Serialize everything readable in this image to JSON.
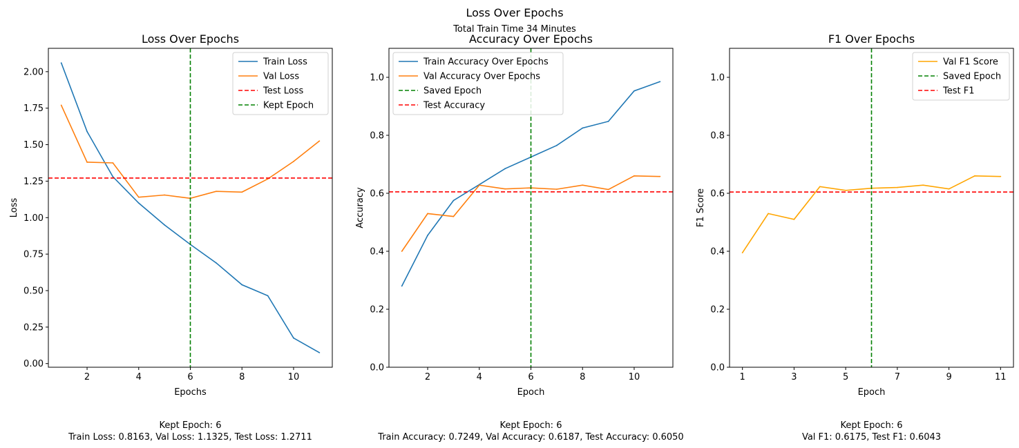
{
  "figure": {
    "suptitle": "Loss Over Epochs",
    "subtitle": "Total Train Time 34 Minutes"
  },
  "chart_data": [
    {
      "type": "line",
      "title": "Loss Over Epochs",
      "xlabel": "Epochs",
      "ylabel": "Loss",
      "xlim": [
        0.5,
        11.5
      ],
      "ylim": [
        -0.025,
        2.16
      ],
      "xticks": [
        2,
        4,
        6,
        8,
        10
      ],
      "yticks": [
        0.0,
        0.25,
        0.5,
        0.75,
        1.0,
        1.25,
        1.5,
        1.75,
        2.0
      ],
      "ytick_labels": [
        "0.00",
        "0.25",
        "0.50",
        "0.75",
        "1.00",
        "1.25",
        "1.50",
        "1.75",
        "2.00"
      ],
      "legend": "upper right",
      "grid": false,
      "x": [
        1,
        2,
        3,
        4,
        5,
        6,
        7,
        8,
        9,
        10,
        11
      ],
      "series": [
        {
          "name": "Train Loss",
          "color": "#1f77b4",
          "values": [
            2.06,
            1.59,
            1.28,
            1.1,
            0.95,
            0.8163,
            0.69,
            0.54,
            0.465,
            0.175,
            0.075
          ]
        },
        {
          "name": "Val Loss",
          "color": "#ff7f0e",
          "values": [
            1.77,
            1.38,
            1.375,
            1.14,
            1.155,
            1.1325,
            1.18,
            1.175,
            1.265,
            1.385,
            1.525
          ]
        }
      ],
      "hlines": [
        {
          "name": "Test Loss",
          "color": "#ff0000",
          "y": 1.2711
        }
      ],
      "vlines": [
        {
          "name": "Kept Epoch",
          "color": "#008000",
          "x": 6
        }
      ],
      "legend_order": [
        "Train Loss",
        "Val Loss",
        "Test Loss",
        "Kept Epoch"
      ],
      "caption": [
        "Kept Epoch: 6",
        "Train Loss: 0.8163, Val Loss: 1.1325, Test Loss: 1.2711"
      ]
    },
    {
      "type": "line",
      "title": "Accuracy Over Epochs",
      "xlabel": "Epoch",
      "ylabel": "Accuracy",
      "xlim": [
        0.5,
        11.5
      ],
      "ylim": [
        0.0,
        1.1
      ],
      "xticks": [
        2,
        4,
        6,
        8,
        10
      ],
      "yticks": [
        0.0,
        0.2,
        0.4,
        0.6,
        0.8,
        1.0
      ],
      "ytick_labels": [
        "0.0",
        "0.2",
        "0.4",
        "0.6",
        "0.8",
        "1.0"
      ],
      "legend": "upper left",
      "grid": false,
      "x": [
        1,
        2,
        3,
        4,
        5,
        6,
        7,
        8,
        9,
        10,
        11
      ],
      "series": [
        {
          "name": "Train Accuracy Over Epochs",
          "color": "#1f77b4",
          "values": [
            0.28,
            0.455,
            0.575,
            0.63,
            0.685,
            0.7249,
            0.765,
            0.825,
            0.848,
            0.953,
            0.985
          ]
        },
        {
          "name": "Val Accuracy Over Epochs",
          "color": "#ff7f0e",
          "values": [
            0.4,
            0.53,
            0.52,
            0.628,
            0.615,
            0.6187,
            0.614,
            0.628,
            0.613,
            0.66,
            0.658
          ]
        }
      ],
      "hlines": [
        {
          "name": "Test Accuracy",
          "color": "#ff0000",
          "y": 0.605
        }
      ],
      "vlines": [
        {
          "name": "Saved Epoch",
          "color": "#008000",
          "x": 6
        }
      ],
      "legend_order": [
        "Train Accuracy Over Epochs",
        "Val Accuracy Over Epochs",
        "Saved Epoch",
        "Test Accuracy"
      ],
      "caption": [
        "Kept Epoch: 6",
        "Train Accuracy: 0.7249, Val Accuracy: 0.6187, Test Accuracy: 0.6050"
      ]
    },
    {
      "type": "line",
      "title": "F1 Over Epochs",
      "xlabel": "Epoch",
      "ylabel": "F1 Score",
      "xlim": [
        0.5,
        11.5
      ],
      "ylim": [
        0.0,
        1.1
      ],
      "xticks": [
        1,
        3,
        5,
        7,
        9,
        11
      ],
      "yticks": [
        0.0,
        0.2,
        0.4,
        0.6,
        0.8,
        1.0
      ],
      "ytick_labels": [
        "0.0",
        "0.2",
        "0.4",
        "0.6",
        "0.8",
        "1.0"
      ],
      "legend": "upper right",
      "grid": false,
      "x": [
        1,
        2,
        3,
        4,
        5,
        6,
        7,
        8,
        9,
        10,
        11
      ],
      "series": [
        {
          "name": "Val F1 Score",
          "color": "#ffa500",
          "values": [
            0.395,
            0.53,
            0.51,
            0.623,
            0.61,
            0.6175,
            0.62,
            0.628,
            0.615,
            0.66,
            0.658
          ]
        }
      ],
      "hlines": [
        {
          "name": "Test F1",
          "color": "#ff0000",
          "y": 0.6043
        }
      ],
      "vlines": [
        {
          "name": "Saved Epoch",
          "color": "#008000",
          "x": 6
        }
      ],
      "legend_order": [
        "Val F1 Score",
        "Saved Epoch",
        "Test F1"
      ],
      "caption": [
        "Kept Epoch: 6",
        "Val F1: 0.6175, Test F1: 0.6043"
      ]
    }
  ]
}
